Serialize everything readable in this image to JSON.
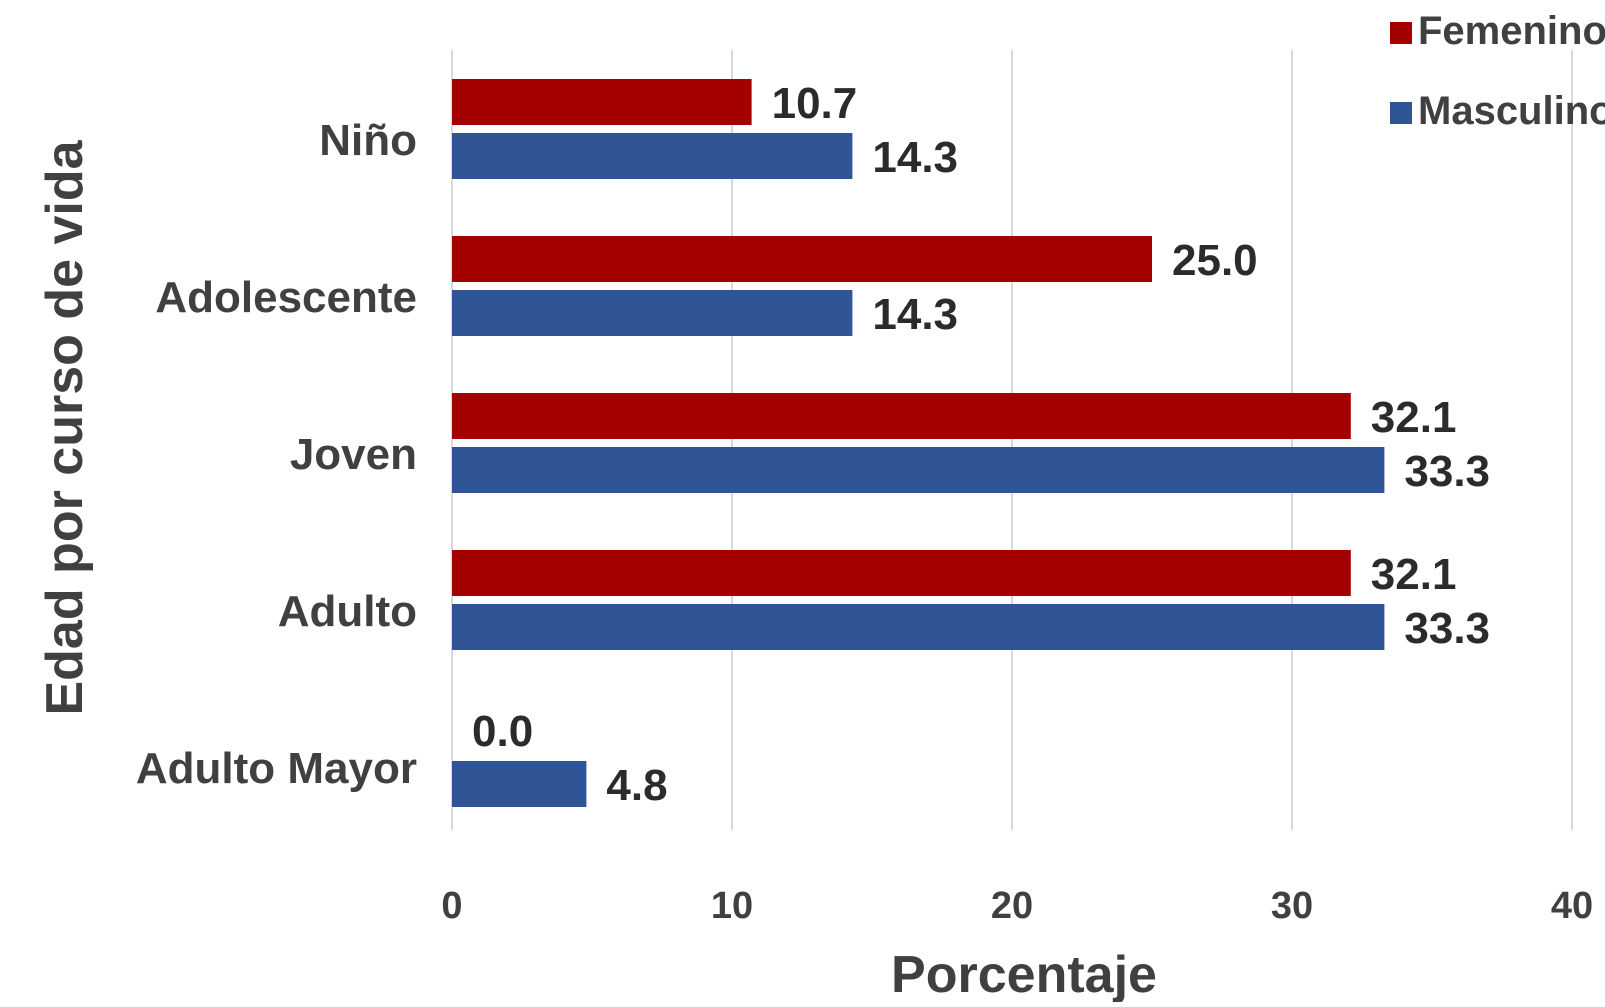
{
  "chart_data": {
    "type": "bar",
    "orientation": "horizontal",
    "categories": [
      "Niño",
      "Adolescente",
      "Joven",
      "Adulto",
      "Adulto Mayor"
    ],
    "series": [
      {
        "name": "Femenino",
        "color": "#a50000",
        "values": [
          10.7,
          25.0,
          32.1,
          32.1,
          0.0
        ],
        "labels": [
          "10.7",
          "25.0",
          "32.1",
          "32.1",
          "0.0"
        ]
      },
      {
        "name": "Masculino",
        "color": "#2f5597",
        "values": [
          14.3,
          14.3,
          33.3,
          33.3,
          4.8
        ],
        "labels": [
          "14.3",
          "14.3",
          "33.3",
          "33.3",
          "4.8"
        ]
      }
    ],
    "xlabel": "Porcentaje",
    "ylabel": "Edad por curso de vida",
    "xlim": [
      0,
      40
    ],
    "xticks": [
      "0",
      "10",
      "20",
      "30",
      "40"
    ],
    "grid": "vertical",
    "legend_position": "top-right"
  }
}
